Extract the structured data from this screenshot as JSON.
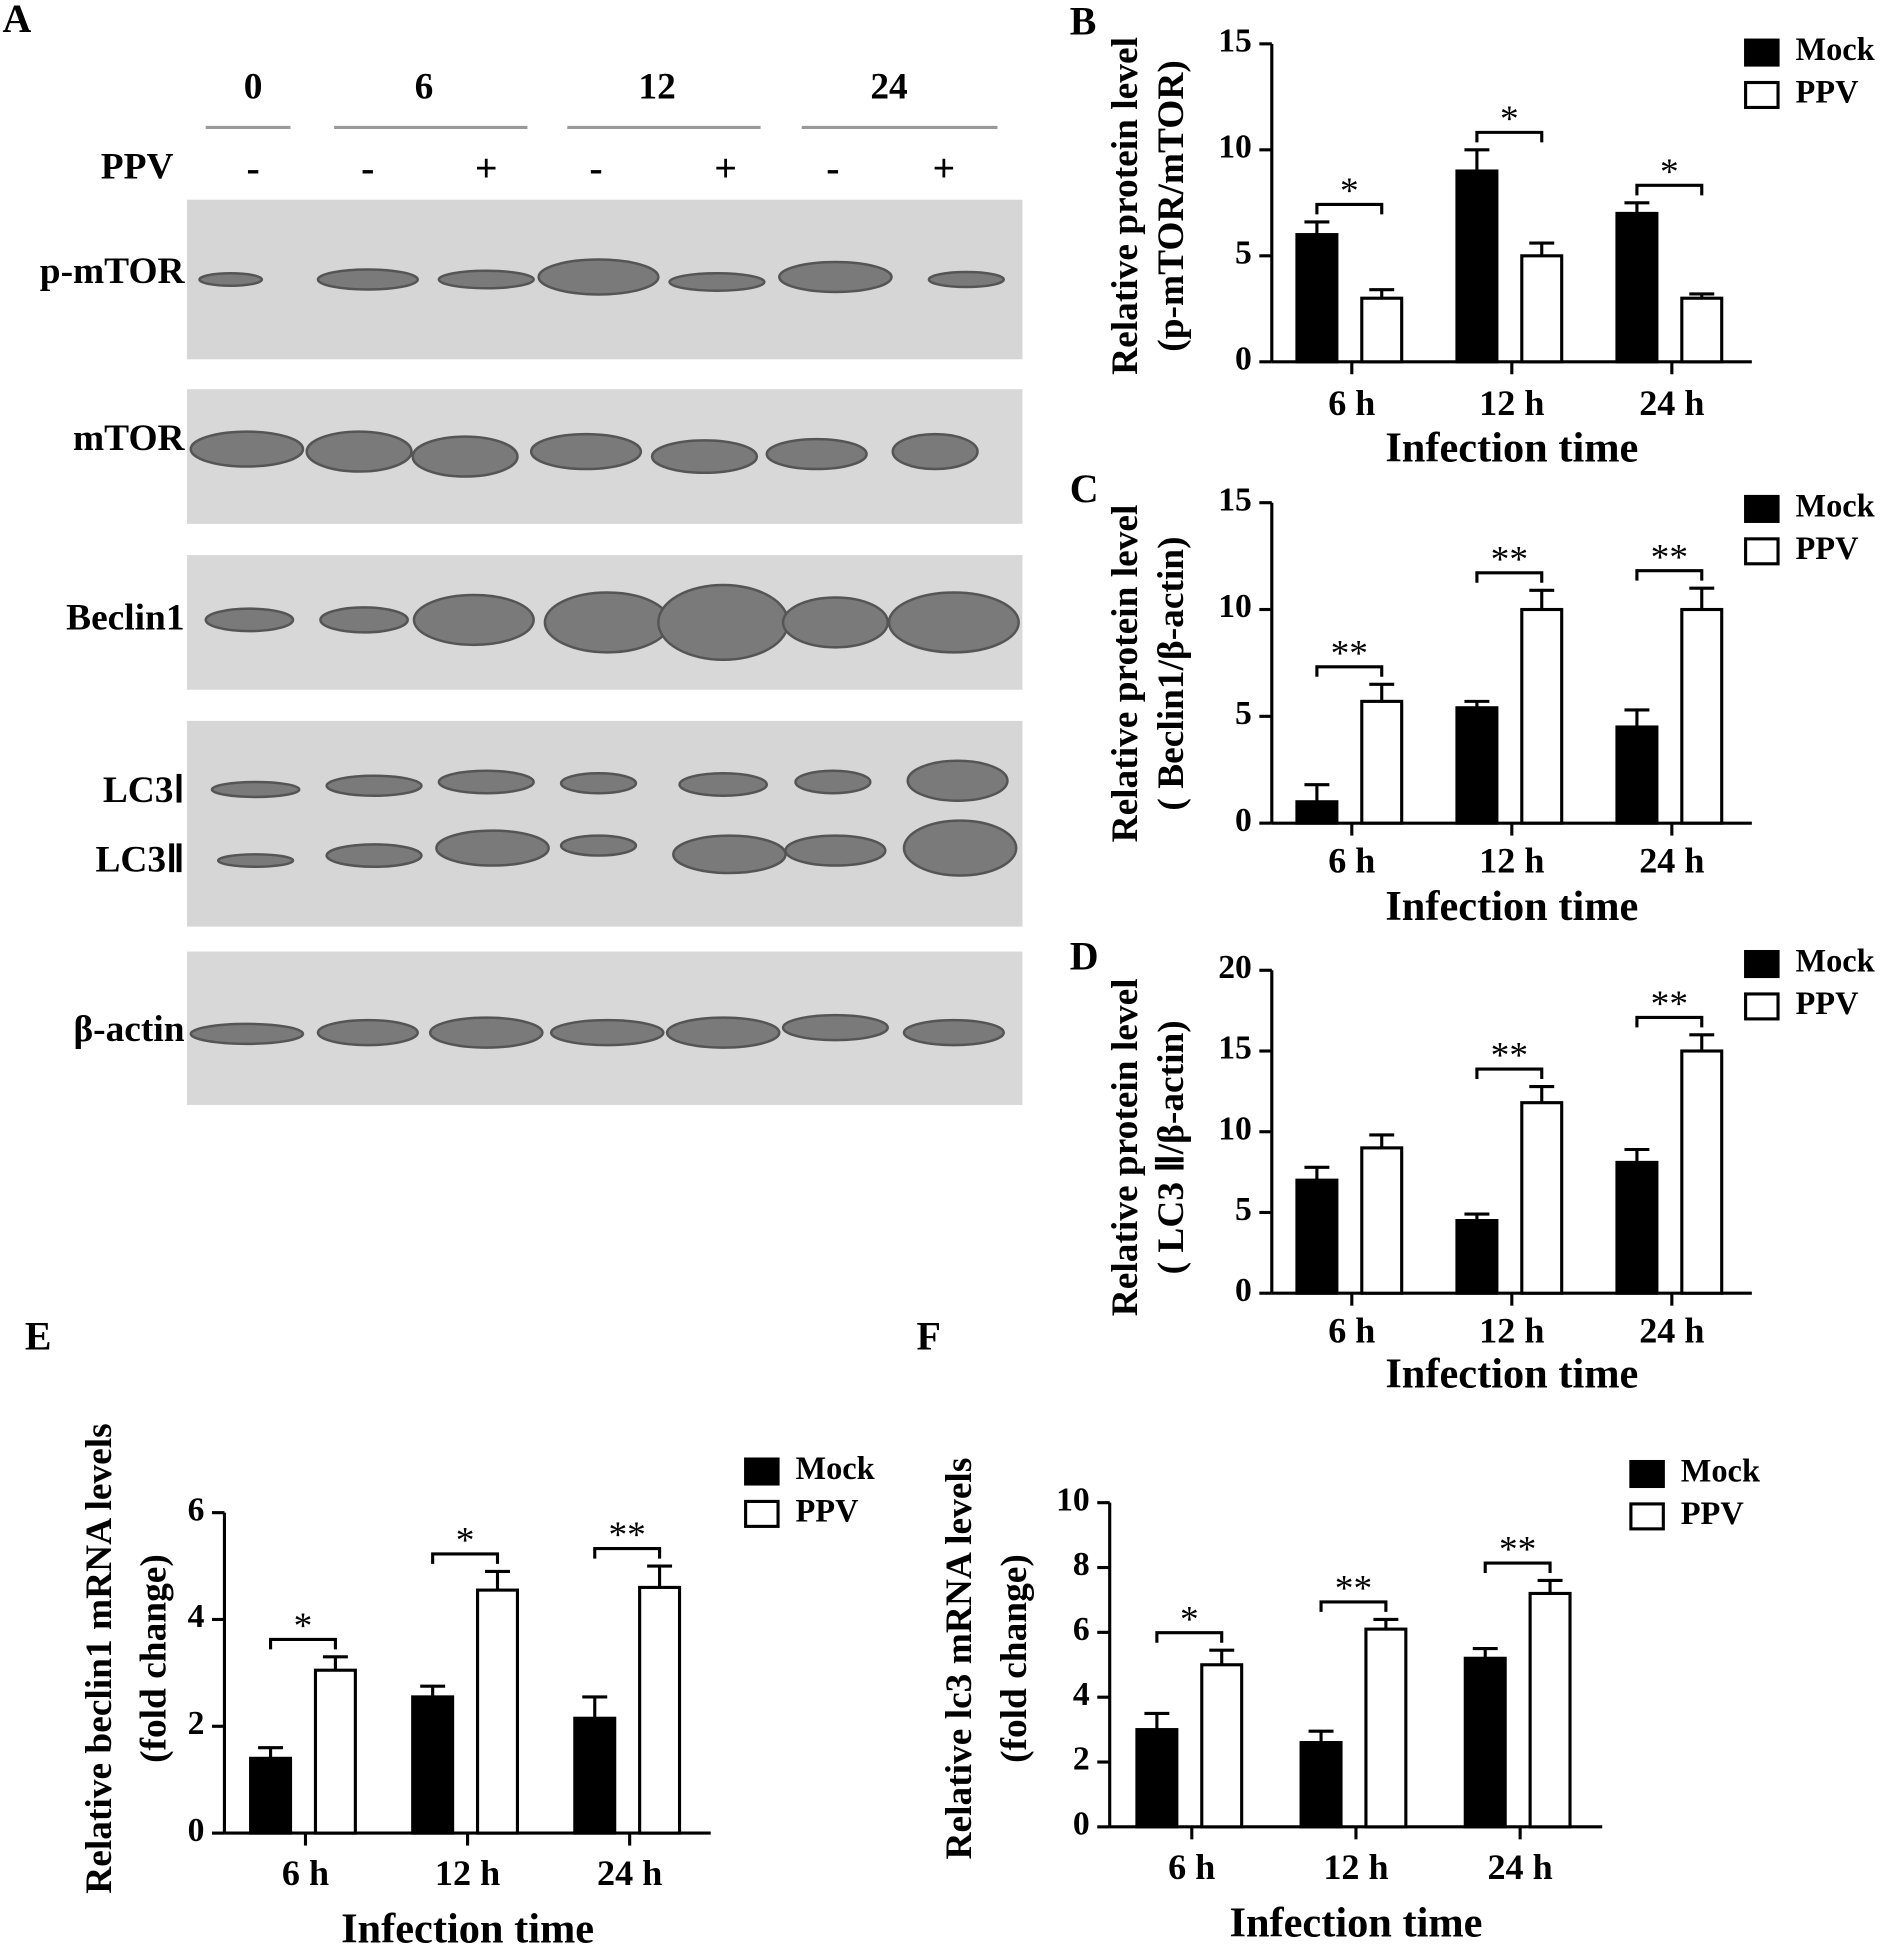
{
  "blot": {
    "panel_label": "A",
    "time_points": [
      "0",
      "6",
      "12",
      "24"
    ],
    "treatment_label": "PPV",
    "lane_signs": [
      "-",
      "-",
      "+",
      "-",
      "+",
      "-",
      "+"
    ],
    "proteins": [
      "p-mTOR",
      "mTOR",
      "Beclin1",
      "LC3Ⅰ",
      "LC3Ⅱ",
      "β-actin"
    ]
  },
  "chart_data": [
    {
      "type": "bar",
      "panel_label": "B",
      "categories": [
        "6 h",
        "12 h",
        "24 h"
      ],
      "series": [
        {
          "name": "Mock",
          "color": "#000000",
          "values": [
            6,
            9,
            7
          ],
          "errors": [
            0.6,
            1.0,
            0.5
          ]
        },
        {
          "name": "PPV",
          "color": "#ffffff",
          "values": [
            3,
            5,
            3
          ],
          "errors": [
            0.4,
            0.6,
            0.2
          ]
        }
      ],
      "ylim": [
        0,
        15
      ],
      "yticks": [
        0,
        5,
        10,
        15
      ],
      "ylabel": [
        "Relative protein level",
        "(p-mTOR/mTOR)"
      ],
      "xlabel": "Infection time",
      "significance": [
        "*",
        "*",
        "*"
      ]
    },
    {
      "type": "bar",
      "panel_label": "C",
      "categories": [
        "6 h",
        "12 h",
        "24 h"
      ],
      "series": [
        {
          "name": "Mock",
          "color": "#000000",
          "values": [
            1,
            5.4,
            4.5
          ],
          "errors": [
            0.8,
            0.3,
            0.8
          ]
        },
        {
          "name": "PPV",
          "color": "#ffffff",
          "values": [
            5.7,
            10,
            10
          ],
          "errors": [
            0.8,
            0.9,
            1.0
          ]
        }
      ],
      "ylim": [
        0,
        15
      ],
      "yticks": [
        0,
        5,
        10,
        15
      ],
      "ylabel": [
        "Relative protein level",
        "( Beclin1/β-actin)"
      ],
      "xlabel": "Infection time",
      "significance": [
        "**",
        "**",
        "**"
      ]
    },
    {
      "type": "bar",
      "panel_label": "D",
      "categories": [
        "6 h",
        "12 h",
        "24 h"
      ],
      "series": [
        {
          "name": "Mock",
          "color": "#000000",
          "values": [
            7,
            4.5,
            8.1
          ],
          "errors": [
            0.8,
            0.4,
            0.8
          ]
        },
        {
          "name": "PPV",
          "color": "#ffffff",
          "values": [
            9,
            11.8,
            15
          ],
          "errors": [
            0.8,
            1.0,
            1.0
          ]
        }
      ],
      "ylim": [
        0,
        20
      ],
      "yticks": [
        0,
        5,
        10,
        15,
        20
      ],
      "ylabel": [
        "Relative protein level",
        "( LC3 Ⅱ/β-actin)"
      ],
      "xlabel": "Infection time",
      "significance": [
        null,
        "**",
        "**"
      ]
    },
    {
      "type": "bar",
      "panel_label": "E",
      "categories": [
        "6 h",
        "12 h",
        "24 h"
      ],
      "series": [
        {
          "name": "Mock",
          "color": "#000000",
          "values": [
            1.4,
            2.55,
            2.15
          ],
          "errors": [
            0.2,
            0.2,
            0.4
          ]
        },
        {
          "name": "PPV",
          "color": "#ffffff",
          "values": [
            3.05,
            4.55,
            4.6
          ],
          "errors": [
            0.25,
            0.35,
            0.4
          ]
        }
      ],
      "ylim": [
        0,
        6
      ],
      "yticks": [
        0,
        2,
        4,
        6
      ],
      "ylabel": [
        "Relative beclin1 mRNA levels",
        "(fold change)"
      ],
      "xlabel": "Infection time",
      "significance": [
        "*",
        "*",
        "**"
      ]
    },
    {
      "type": "bar",
      "panel_label": "F",
      "categories": [
        "6 h",
        "12 h",
        "24 h"
      ],
      "series": [
        {
          "name": "Mock",
          "color": "#000000",
          "values": [
            3.0,
            2.6,
            5.2
          ],
          "errors": [
            0.5,
            0.35,
            0.3
          ]
        },
        {
          "name": "PPV",
          "color": "#ffffff",
          "values": [
            5.0,
            6.1,
            7.2
          ],
          "errors": [
            0.45,
            0.3,
            0.4
          ]
        }
      ],
      "ylim": [
        0,
        10
      ],
      "yticks": [
        0,
        2,
        4,
        6,
        8,
        10
      ],
      "ylabel": [
        "Relative lc3 mRNA levels",
        "(fold change)"
      ],
      "xlabel": "Infection time",
      "significance": [
        "*",
        "**",
        "**"
      ]
    }
  ]
}
